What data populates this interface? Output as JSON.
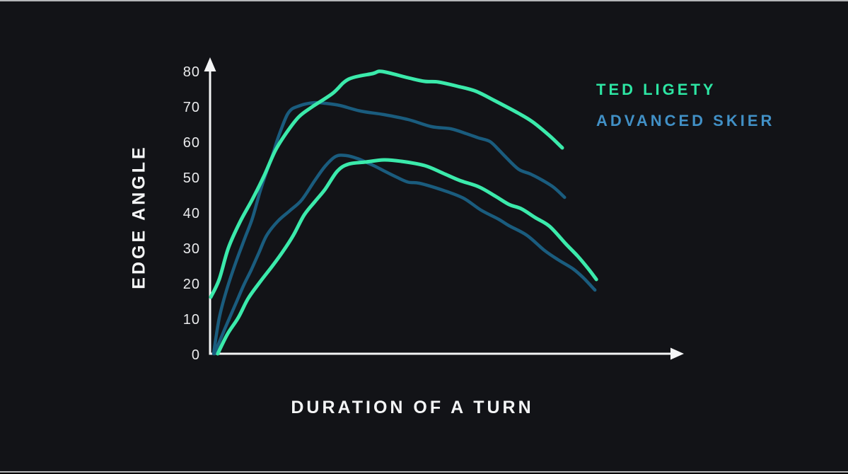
{
  "axis": {
    "y_label": "EDGE ANGLE",
    "x_label": "DURATION OF A TURN",
    "y_ticks": [
      "0",
      "10",
      "20",
      "30",
      "40",
      "50",
      "60",
      "70",
      "80"
    ]
  },
  "legend": {
    "items": [
      {
        "id": "ted-ligety",
        "label": "TED LIGETY",
        "text_color": "#2DE5A3"
      },
      {
        "id": "advanced-skier",
        "label": "ADVANCED SKIER",
        "text_color": "#4190C6"
      }
    ]
  },
  "colors": {
    "background": "#121317",
    "axis_white": "#F4F5F6",
    "tick_text": "#E9EAEC",
    "ted_line_green": "#3BEAAB",
    "advanced_line_blue": "#1A5C7E",
    "edge_strip": "#B4B6B8"
  },
  "chart_data": {
    "type": "line",
    "title": "",
    "xlabel": "DURATION OF A TURN",
    "ylabel": "EDGE ANGLE",
    "x_axis": {
      "unit": "percent of turn duration (unlabeled axis)",
      "range": [
        0,
        100
      ],
      "ticks": []
    },
    "y_axis": {
      "unit": "degrees",
      "range": [
        0,
        85
      ],
      "ticks": [
        0,
        10,
        20,
        30,
        40,
        50,
        60,
        70,
        80
      ]
    },
    "grid": false,
    "legend_position": "top-right",
    "series": [
      {
        "id": "advanced-turn-1",
        "name": "Advanced Skier - first turn",
        "group": "advanced",
        "color": "#1A5C7E",
        "points": [
          [
            0.6,
            0
          ],
          [
            1.8,
            10
          ],
          [
            3.3,
            17.6
          ],
          [
            5.3,
            25.6
          ],
          [
            7.4,
            33
          ],
          [
            8.9,
            38.2
          ],
          [
            10.5,
            45.6
          ],
          [
            12.0,
            51.6
          ],
          [
            13.2,
            56
          ],
          [
            14.2,
            60.2
          ],
          [
            15.3,
            64.2
          ],
          [
            16.4,
            67.6
          ],
          [
            17.4,
            69.2
          ],
          [
            18.8,
            70
          ],
          [
            20.3,
            70.6
          ],
          [
            22.3,
            71
          ],
          [
            24.5,
            70.8
          ],
          [
            27.6,
            70.2
          ],
          [
            32.1,
            68.6
          ],
          [
            37.1,
            67.6
          ],
          [
            42.3,
            66.2
          ],
          [
            47.3,
            64.2
          ],
          [
            51.4,
            63.6
          ],
          [
            54.8,
            62.2
          ],
          [
            57.4,
            61
          ],
          [
            59.8,
            60
          ],
          [
            61.8,
            57.5
          ],
          [
            62.9,
            56
          ],
          [
            65.9,
            52.2
          ],
          [
            68.5,
            50.8
          ],
          [
            71.1,
            49
          ],
          [
            73.5,
            47
          ],
          [
            75.8,
            44.2
          ]
        ]
      },
      {
        "id": "advanced-turn-2",
        "name": "Advanced Skier - second turn",
        "group": "advanced",
        "color": "#1A5C7E",
        "points": [
          [
            0.8,
            0
          ],
          [
            3.0,
            7
          ],
          [
            5.3,
            14
          ],
          [
            7.1,
            19.5
          ],
          [
            8.6,
            23.5
          ],
          [
            10.3,
            28.5
          ],
          [
            12.0,
            33.5
          ],
          [
            14.4,
            37.5
          ],
          [
            17.0,
            40.5
          ],
          [
            19.5,
            43.5
          ],
          [
            22.3,
            49
          ],
          [
            24.5,
            53
          ],
          [
            26.8,
            55.8
          ],
          [
            29.1,
            56
          ],
          [
            31.4,
            55.2
          ],
          [
            33.2,
            54.2
          ],
          [
            35.2,
            53
          ],
          [
            37.4,
            51.5
          ],
          [
            39.7,
            50
          ],
          [
            42.3,
            48.5
          ],
          [
            44.7,
            48.2
          ],
          [
            49.8,
            46.2
          ],
          [
            54.1,
            44
          ],
          [
            57.9,
            40.6
          ],
          [
            61.7,
            38
          ],
          [
            63.9,
            36.2
          ],
          [
            67.7,
            33.5
          ],
          [
            71.5,
            29.2
          ],
          [
            74.5,
            26.5
          ],
          [
            77.6,
            24
          ],
          [
            79.8,
            21.5
          ],
          [
            82.3,
            18
          ]
        ]
      },
      {
        "id": "ted-turn-1",
        "name": "Ted Ligety - first turn",
        "group": "ted",
        "color": "#3BEAAB",
        "points": [
          [
            0,
            16
          ],
          [
            1.8,
            21
          ],
          [
            3.8,
            30
          ],
          [
            6.4,
            37.6
          ],
          [
            8.9,
            43.6
          ],
          [
            11.4,
            50.2
          ],
          [
            13.9,
            57.6
          ],
          [
            16.5,
            63
          ],
          [
            18.9,
            67
          ],
          [
            21.5,
            69.6
          ],
          [
            26.1,
            73.6
          ],
          [
            29.5,
            77.6
          ],
          [
            34.7,
            79.2
          ],
          [
            36.7,
            79.8
          ],
          [
            42.3,
            78
          ],
          [
            45.8,
            77
          ],
          [
            48.8,
            76.8
          ],
          [
            52.9,
            75.6
          ],
          [
            56.8,
            74.2
          ],
          [
            60.9,
            71.5
          ],
          [
            65.9,
            68
          ],
          [
            68.9,
            65.6
          ],
          [
            72.6,
            61.6
          ],
          [
            75.3,
            58.2
          ]
        ]
      },
      {
        "id": "ted-turn-2",
        "name": "Ted Ligety - second turn",
        "group": "ted",
        "color": "#3BEAAB",
        "points": [
          [
            1.5,
            0
          ],
          [
            3.6,
            5.6
          ],
          [
            5.9,
            10.2
          ],
          [
            8.0,
            15.6
          ],
          [
            10.5,
            20.2
          ],
          [
            13.2,
            24.8
          ],
          [
            15.5,
            29
          ],
          [
            17.7,
            33.5
          ],
          [
            20.0,
            39.2
          ],
          [
            22.3,
            43
          ],
          [
            24.5,
            46.5
          ],
          [
            27.1,
            51.6
          ],
          [
            29.5,
            53.6
          ],
          [
            33.2,
            54.2
          ],
          [
            37.1,
            54.8
          ],
          [
            40.8,
            54.4
          ],
          [
            45.8,
            53.2
          ],
          [
            49.8,
            51
          ],
          [
            53.3,
            49
          ],
          [
            57.4,
            47.2
          ],
          [
            60.9,
            44.6
          ],
          [
            63.9,
            42.2
          ],
          [
            66.5,
            41
          ],
          [
            69.5,
            38.5
          ],
          [
            72.6,
            36
          ],
          [
            76.1,
            31
          ],
          [
            78.6,
            27.6
          ],
          [
            80.9,
            24
          ],
          [
            82.6,
            21
          ]
        ]
      }
    ]
  }
}
